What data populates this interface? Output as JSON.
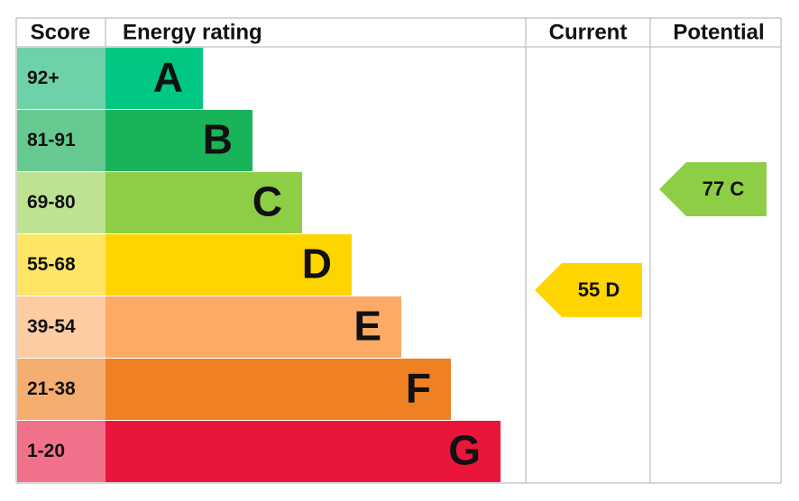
{
  "header": {
    "score": "Score",
    "energy_rating": "Energy rating",
    "current": "Current",
    "potential": "Potential"
  },
  "bands": [
    {
      "score": "92+",
      "letter": "A",
      "color": "#00c781",
      "score_color": "#6fd1a8"
    },
    {
      "score": "81-91",
      "letter": "B",
      "color": "#19b459",
      "score_color": "#66c98f"
    },
    {
      "score": "69-80",
      "letter": "C",
      "color": "#8dce46",
      "score_color": "#bde392"
    },
    {
      "score": "55-68",
      "letter": "D",
      "color": "#ffd500",
      "score_color": "#ffe566"
    },
    {
      "score": "39-54",
      "letter": "E",
      "color": "#fcaa65",
      "score_color": "#fdcca2"
    },
    {
      "score": "21-38",
      "letter": "F",
      "color": "#ef8023",
      "score_color": "#f5ad70"
    },
    {
      "score": "1-20",
      "letter": "G",
      "color": "#e9153b",
      "score_color": "#f07189"
    }
  ],
  "current": {
    "label": "55 D",
    "color": "#ffd500"
  },
  "potential": {
    "label": "77 C",
    "color": "#8dce46"
  }
}
